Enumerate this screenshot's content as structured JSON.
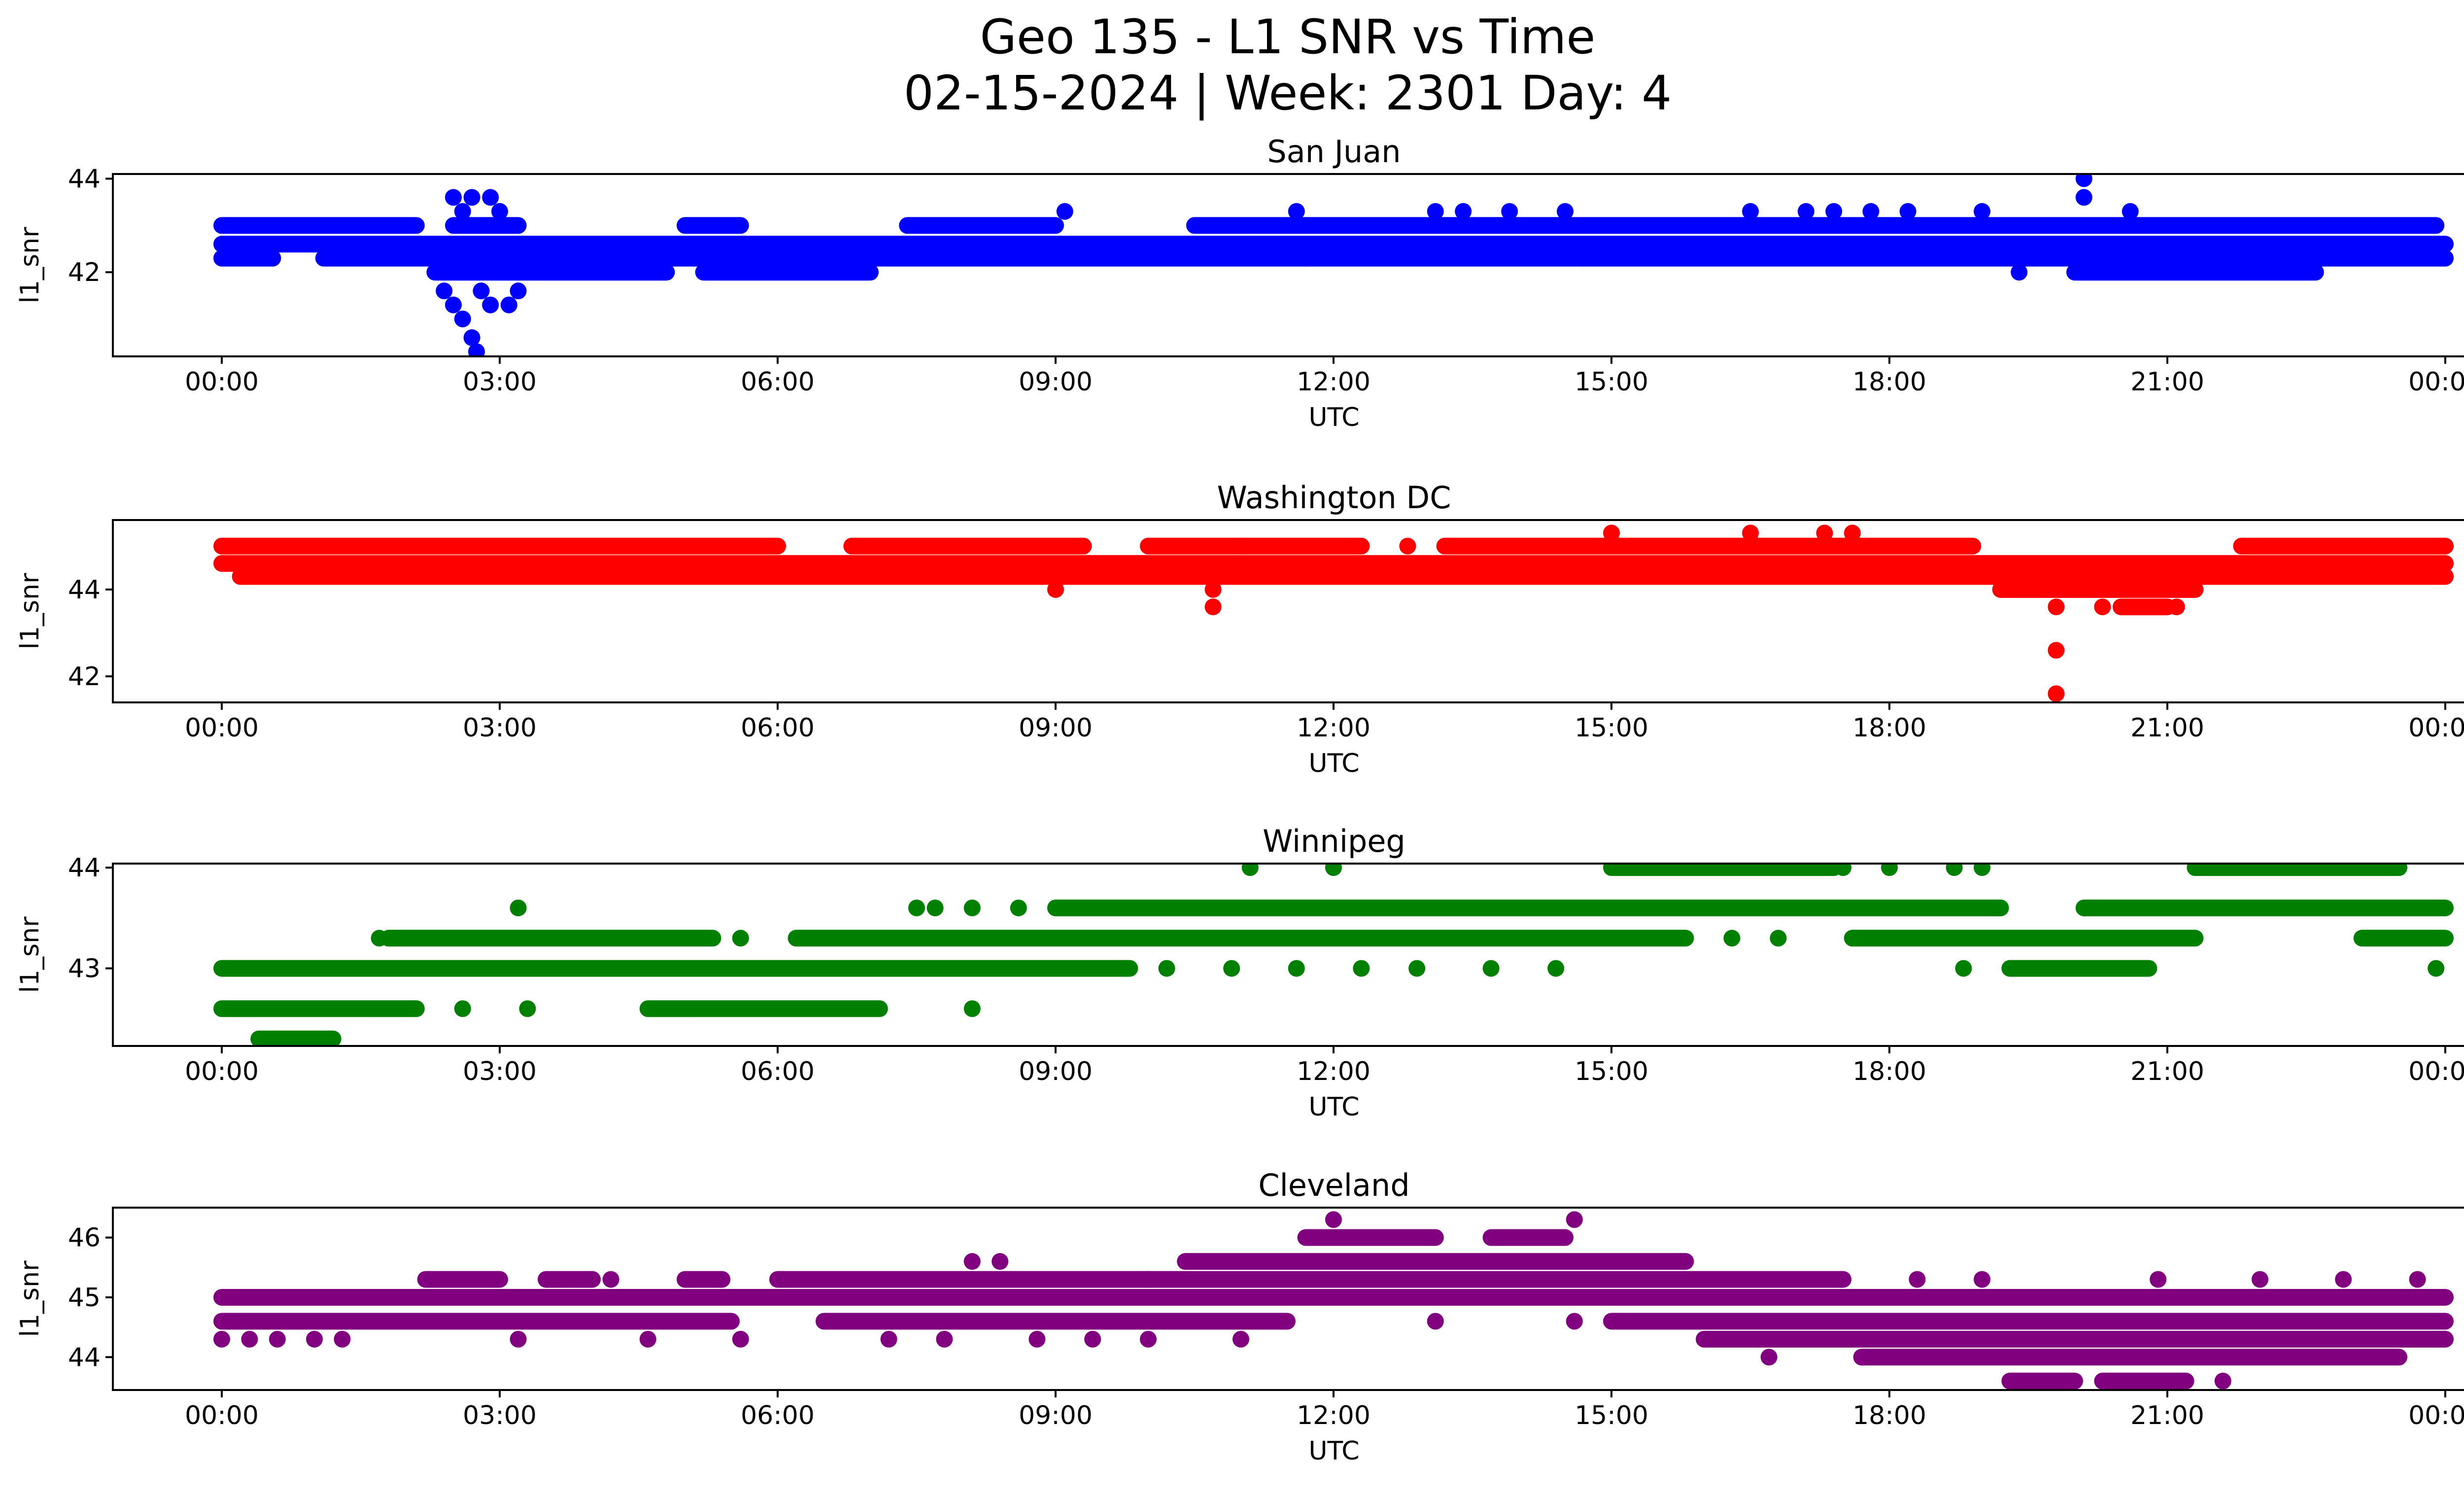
{
  "title_line1": "Geo 135 - L1 SNR vs Time",
  "title_line2": "02-15-2024 | Week: 2301 Day: 4",
  "chart_data": [
    {
      "type": "scatter",
      "title": "San Juan",
      "xlabel": "UTC",
      "ylabel": "l1_snr",
      "color": "#0000ff",
      "x_range_hours": [
        -0.4,
        26
      ],
      "xticks": [
        "00:00",
        "03:00",
        "06:00",
        "09:00",
        "12:00",
        "15:00",
        "18:00",
        "21:00",
        "00:00"
      ],
      "ylim": [
        40.2,
        44.1
      ],
      "yticks": [
        42,
        44
      ],
      "grid": false,
      "levels": [
        {
          "y": 43.0,
          "segments": [
            [
              0,
              2.1
            ],
            [
              2.5,
              3.2
            ],
            [
              5.0,
              5.6
            ],
            [
              7.4,
              9.0
            ],
            [
              10.5,
              23.9
            ]
          ]
        },
        {
          "y": 42.6,
          "segments": [
            [
              0,
              24
            ]
          ]
        },
        {
          "y": 42.3,
          "segments": [
            [
              0,
              0.55
            ],
            [
              1.1,
              24
            ]
          ]
        },
        {
          "y": 42.0,
          "segments": [
            [
              2.3,
              4.8
            ],
            [
              5.2,
              7.0
            ],
            [
              20.0,
              22.6
            ]
          ]
        }
      ],
      "scattered_points": [
        [
          2.4,
          41.6
        ],
        [
          2.5,
          41.3
        ],
        [
          2.6,
          41.0
        ],
        [
          2.7,
          40.6
        ],
        [
          2.75,
          40.3
        ],
        [
          2.8,
          41.6
        ],
        [
          2.9,
          41.3
        ],
        [
          3.1,
          41.3
        ],
        [
          3.2,
          41.6
        ],
        [
          2.6,
          43.3
        ],
        [
          2.7,
          43.6
        ],
        [
          2.9,
          43.6
        ],
        [
          3.0,
          43.3
        ],
        [
          2.5,
          43.6
        ],
        [
          9.1,
          43.3
        ],
        [
          11.6,
          43.3
        ],
        [
          13.1,
          43.3
        ],
        [
          13.4,
          43.3
        ],
        [
          13.9,
          43.3
        ],
        [
          14.5,
          43.3
        ],
        [
          16.5,
          43.3
        ],
        [
          17.1,
          43.3
        ],
        [
          17.4,
          43.3
        ],
        [
          17.8,
          43.3
        ],
        [
          18.2,
          43.3
        ],
        [
          19.0,
          43.3
        ],
        [
          20.1,
          44.0
        ],
        [
          20.1,
          43.6
        ],
        [
          20.6,
          43.3
        ],
        [
          19.4,
          42.0
        ],
        [
          14.7,
          42.3
        ],
        [
          11.7,
          42.3
        ]
      ]
    },
    {
      "type": "scatter",
      "title": "Washington DC",
      "xlabel": "UTC",
      "ylabel": "l1_snr",
      "color": "#ff0000",
      "x_range_hours": [
        -0.4,
        26
      ],
      "xticks": [
        "00:00",
        "03:00",
        "06:00",
        "09:00",
        "12:00",
        "15:00",
        "18:00",
        "21:00",
        "00:00"
      ],
      "ylim": [
        41.4,
        45.6
      ],
      "yticks": [
        42,
        44
      ],
      "grid": false,
      "levels": [
        {
          "y": 45.0,
          "segments": [
            [
              0,
              6.0
            ],
            [
              6.8,
              9.3
            ],
            [
              10.0,
              12.3
            ],
            [
              13.2,
              18.9
            ],
            [
              21.8,
              24
            ]
          ]
        },
        {
          "y": 44.6,
          "segments": [
            [
              0,
              24
            ]
          ]
        },
        {
          "y": 44.3,
          "segments": [
            [
              0.2,
              24
            ]
          ]
        },
        {
          "y": 44.0,
          "segments": [
            [
              19.2,
              21.3
            ]
          ]
        },
        {
          "y": 43.6,
          "segments": [
            [
              20.5,
              21.0
            ]
          ]
        }
      ],
      "scattered_points": [
        [
          9.0,
          44.0
        ],
        [
          10.7,
          44.0
        ],
        [
          10.7,
          43.6
        ],
        [
          15.0,
          45.3
        ],
        [
          16.5,
          45.3
        ],
        [
          17.3,
          45.3
        ],
        [
          17.6,
          45.3
        ],
        [
          19.8,
          43.6
        ],
        [
          19.8,
          42.6
        ],
        [
          19.8,
          41.6
        ],
        [
          20.3,
          43.6
        ],
        [
          21.1,
          43.6
        ],
        [
          12.8,
          45.0
        ],
        [
          11.0,
          45.0
        ]
      ]
    },
    {
      "type": "scatter",
      "title": "Winnipeg",
      "xlabel": "UTC",
      "ylabel": "l1_snr",
      "color": "#008000",
      "x_range_hours": [
        -0.4,
        26
      ],
      "xticks": [
        "00:00",
        "03:00",
        "06:00",
        "09:00",
        "12:00",
        "15:00",
        "18:00",
        "21:00",
        "00:00"
      ],
      "ylim": [
        42.23,
        44.04
      ],
      "yticks": [
        43,
        44
      ],
      "grid": false,
      "levels": [
        {
          "y": 44.0,
          "segments": [
            [
              15.0,
              17.4
            ],
            [
              21.3,
              23.5
            ]
          ]
        },
        {
          "y": 43.6,
          "segments": [
            [
              9.0,
              19.2
            ],
            [
              20.1,
              24
            ]
          ]
        },
        {
          "y": 43.3,
          "segments": [
            [
              1.8,
              5.3
            ],
            [
              6.2,
              15.8
            ],
            [
              17.6,
              21.3
            ],
            [
              23.1,
              24
            ]
          ]
        },
        {
          "y": 43.0,
          "segments": [
            [
              0,
              9.8
            ],
            [
              19.3,
              20.8
            ]
          ]
        },
        {
          "y": 42.6,
          "segments": [
            [
              0,
              2.1
            ],
            [
              4.6,
              7.1
            ]
          ]
        },
        {
          "y": 42.3,
          "segments": [
            [
              0.4,
              1.2
            ]
          ]
        }
      ],
      "scattered_points": [
        [
          3.2,
          43.6
        ],
        [
          1.7,
          43.3
        ],
        [
          5.6,
          43.3
        ],
        [
          7.5,
          43.6
        ],
        [
          7.7,
          43.6
        ],
        [
          8.1,
          43.6
        ],
        [
          8.6,
          43.6
        ],
        [
          11.1,
          44.0
        ],
        [
          12.0,
          44.0
        ],
        [
          8.1,
          42.6
        ],
        [
          2.6,
          42.6
        ],
        [
          3.3,
          42.6
        ],
        [
          10.2,
          43.0
        ],
        [
          10.9,
          43.0
        ],
        [
          11.6,
          43.0
        ],
        [
          12.3,
          43.0
        ],
        [
          12.9,
          43.0
        ],
        [
          13.7,
          43.0
        ],
        [
          14.4,
          43.0
        ],
        [
          17.5,
          44.0
        ],
        [
          18.0,
          44.0
        ],
        [
          18.7,
          44.0
        ],
        [
          19.0,
          44.0
        ],
        [
          16.3,
          43.3
        ],
        [
          16.8,
          43.3
        ],
        [
          18.8,
          43.0
        ],
        [
          23.9,
          43.0
        ]
      ]
    },
    {
      "type": "scatter",
      "title": "Cleveland",
      "xlabel": "UTC",
      "ylabel": "l1_snr",
      "color": "#800080",
      "x_range_hours": [
        -0.4,
        26
      ],
      "xticks": [
        "00:00",
        "03:00",
        "06:00",
        "09:00",
        "12:00",
        "15:00",
        "18:00",
        "21:00",
        "00:00"
      ],
      "ylim": [
        43.45,
        46.5
      ],
      "yticks": [
        44,
        45,
        46
      ],
      "grid": false,
      "levels": [
        {
          "y": 46.0,
          "segments": [
            [
              11.7,
              13.1
            ],
            [
              13.7,
              14.5
            ]
          ]
        },
        {
          "y": 45.6,
          "segments": [
            [
              10.4,
              15.8
            ]
          ]
        },
        {
          "y": 45.3,
          "segments": [
            [
              2.2,
              3.0
            ],
            [
              3.5,
              4.0
            ],
            [
              5.0,
              5.4
            ],
            [
              6.0,
              10.0
            ],
            [
              10.0,
              17.5
            ]
          ]
        },
        {
          "y": 45.0,
          "segments": [
            [
              0,
              24
            ]
          ]
        },
        {
          "y": 44.6,
          "segments": [
            [
              0,
              5.5
            ],
            [
              6.5,
              11.5
            ],
            [
              15.0,
              24
            ]
          ]
        },
        {
          "y": 44.3,
          "segments": [
            [
              16.0,
              24
            ]
          ]
        },
        {
          "y": 44.0,
          "segments": [
            [
              17.7,
              23.5
            ]
          ]
        },
        {
          "y": 43.6,
          "segments": [
            [
              19.3,
              20.0
            ],
            [
              20.3,
              21.2
            ]
          ]
        }
      ],
      "scattered_points": [
        [
          0,
          44.3
        ],
        [
          0.3,
          44.3
        ],
        [
          0.6,
          44.3
        ],
        [
          1.0,
          44.3
        ],
        [
          1.3,
          44.3
        ],
        [
          3.2,
          44.3
        ],
        [
          4.6,
          44.3
        ],
        [
          5.6,
          44.3
        ],
        [
          7.2,
          44.3
        ],
        [
          7.8,
          44.3
        ],
        [
          8.8,
          44.3
        ],
        [
          9.4,
          44.3
        ],
        [
          10.0,
          44.3
        ],
        [
          11.0,
          44.3
        ],
        [
          8.1,
          45.6
        ],
        [
          8.4,
          45.6
        ],
        [
          12.0,
          46.3
        ],
        [
          14.6,
          46.3
        ],
        [
          13.1,
          44.6
        ],
        [
          14.6,
          44.6
        ],
        [
          16.7,
          44.0
        ],
        [
          18.3,
          45.3
        ],
        [
          19.0,
          45.3
        ],
        [
          20.9,
          45.3
        ],
        [
          21.6,
          43.6
        ],
        [
          22.0,
          45.3
        ],
        [
          22.9,
          45.3
        ],
        [
          23.7,
          45.3
        ],
        [
          4.2,
          45.3
        ]
      ]
    }
  ]
}
